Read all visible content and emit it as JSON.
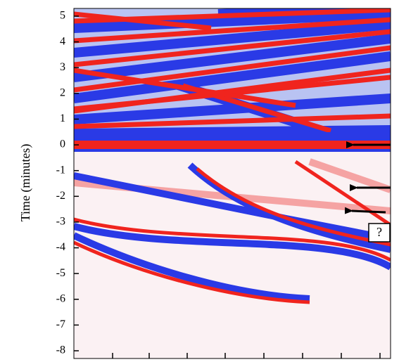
{
  "chart_data": {
    "type": "heatmap",
    "y_label": "Time (minutes)",
    "ylim": [
      -8.3,
      5.3
    ],
    "yticks": [
      5,
      4,
      3,
      2,
      1,
      0,
      -1,
      -2,
      -3,
      -4,
      -5,
      -6,
      -7,
      -8
    ],
    "annotations": [
      "?"
    ]
  }
}
